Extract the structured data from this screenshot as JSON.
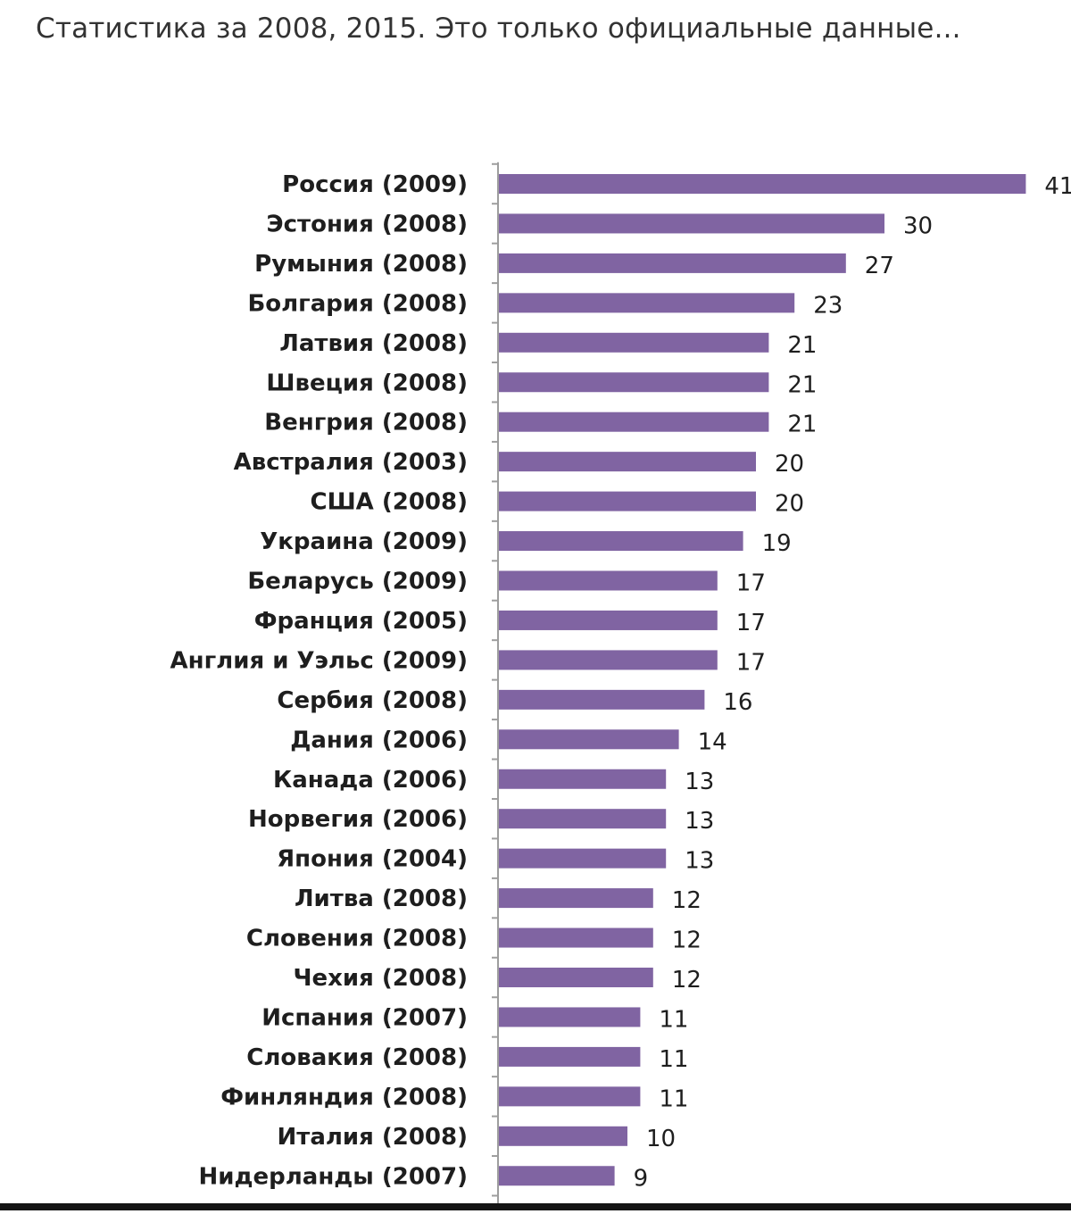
{
  "post": {
    "caption": "Статистика за 2008, 2015. Это только официальные данные..."
  },
  "colors": {
    "bar": "#8064a2",
    "axis": "#9e9e9e",
    "text": "#1e1e1e",
    "caption": "#333333"
  },
  "chart_data": {
    "type": "bar",
    "orientation": "horizontal",
    "categories": [
      "Россия (2009)",
      "Эстония (2008)",
      "Румыния (2008)",
      "Болгария (2008)",
      "Латвия (2008)",
      "Швеция (2008)",
      "Венгрия (2008)",
      "Австралия (2003)",
      "США (2008)",
      "Украина (2009)",
      "Беларусь (2009)",
      "Франция (2005)",
      "Англия и Уэльс (2009)",
      "Сербия (2008)",
      "Дания (2006)",
      "Канада (2006)",
      "Норвегия (2006)",
      "Япония (2004)",
      "Литва (2008)",
      "Словения (2008)",
      "Чехия (2008)",
      "Испания (2007)",
      "Словакия (2008)",
      "Финляндия (2008)",
      "Италия (2008)",
      "Нидерланды (2007)"
    ],
    "values": [
      41,
      30,
      27,
      23,
      21,
      21,
      21,
      20,
      20,
      19,
      17,
      17,
      17,
      16,
      14,
      13,
      13,
      13,
      12,
      12,
      12,
      11,
      11,
      11,
      10,
      9
    ],
    "value_labels": [
      "41",
      "30",
      "27",
      "23",
      "21",
      "21",
      "21",
      "20",
      "20",
      "19",
      "17",
      "17",
      "17",
      "16",
      "14",
      "13",
      "13",
      "13",
      "12",
      "12",
      "12",
      "11",
      "11",
      "11",
      "10",
      "9"
    ],
    "title": "",
    "xlabel": "",
    "ylabel": "",
    "xlim": [
      0,
      41
    ],
    "grid": false,
    "legend": "none"
  }
}
